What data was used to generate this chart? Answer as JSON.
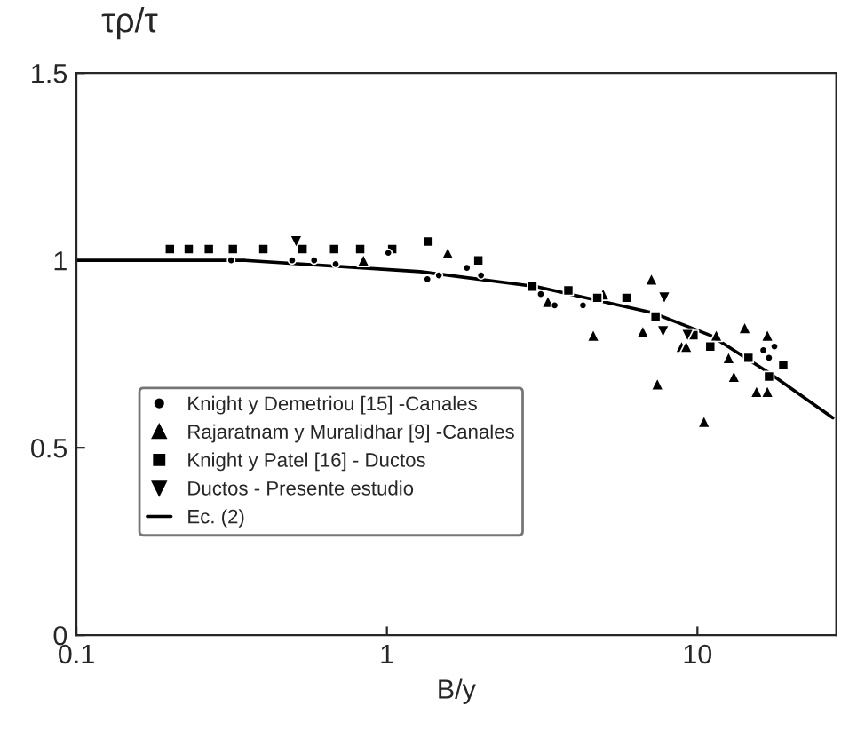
{
  "chart_data": {
    "type": "scatter",
    "xlabel": "B/y",
    "ylabel": "τρ/τ",
    "log": "x",
    "xlim": [
      0.1,
      28
    ],
    "xticks": [
      0.1,
      1,
      10
    ],
    "ylim": [
      0,
      1.5
    ],
    "yticks": [
      0,
      0.5,
      1,
      1.5
    ],
    "grid": false,
    "legend": "bottom left",
    "series": [
      {
        "name": "Knight y Demetriou [15] -Canales",
        "color": "#000000",
        "marker": "circle",
        "x": [
          0.315,
          0.495,
          0.583,
          0.684,
          1.01,
          1.35,
          1.47,
          1.81,
          2.01,
          3.13,
          3.47,
          4.28,
          16.3,
          17.7,
          17.0
        ],
        "values": [
          1.0,
          1.0,
          1.0,
          0.99,
          1.02,
          0.95,
          0.96,
          0.98,
          0.96,
          0.91,
          0.88,
          0.88,
          0.76,
          0.77,
          0.74
        ]
      },
      {
        "name": "Rajaratnam y Muralidhar [9] -Canales",
        "color": "#000000",
        "marker": "triangle",
        "x": [
          0.84,
          1.57,
          3.3,
          4.62,
          7.11,
          6.67,
          7.43,
          8.89,
          9.2,
          10.5,
          11.5,
          13.1,
          14.2,
          15.5,
          16.8,
          16.8,
          4.97,
          12.6
        ],
        "values": [
          1.0,
          1.02,
          0.89,
          0.8,
          0.95,
          0.81,
          0.67,
          0.77,
          0.77,
          0.57,
          0.8,
          0.69,
          0.82,
          0.65,
          0.65,
          0.8,
          0.91,
          0.74
        ]
      },
      {
        "name": "Knight y Patel [16] - Ductos",
        "color": "#000000",
        "marker": "square",
        "x": [
          0.2,
          0.23,
          0.267,
          0.319,
          0.4,
          0.535,
          0.676,
          0.82,
          1.04,
          1.36,
          1.97,
          2.94,
          3.84,
          4.76,
          5.91,
          7.33,
          9.71,
          11.0,
          14.6,
          17.0,
          18.9
        ],
        "values": [
          1.03,
          1.03,
          1.03,
          1.03,
          1.03,
          1.03,
          1.03,
          1.03,
          1.03,
          1.05,
          1.0,
          0.93,
          0.92,
          0.9,
          0.9,
          0.85,
          0.8,
          0.77,
          0.74,
          0.69,
          0.72
        ]
      },
      {
        "name": "Ductos - Presente estudio",
        "color": "#000000",
        "marker": "triangle_down",
        "x": [
          0.51,
          7.82,
          7.75,
          9.29
        ],
        "values": [
          1.05,
          0.9,
          0.81,
          0.8
        ]
      },
      {
        "name": "Ec. (2)",
        "type": "line",
        "color": "#000000",
        "marker": "none",
        "line_style": "solid",
        "x": [
          0.1,
          0.35,
          1.28,
          3.03,
          7.17,
          11.0,
          17.0,
          27.3
        ],
        "values": [
          1.0,
          1.0,
          0.97,
          0.93,
          0.86,
          0.8,
          0.7,
          0.58
        ]
      }
    ]
  }
}
